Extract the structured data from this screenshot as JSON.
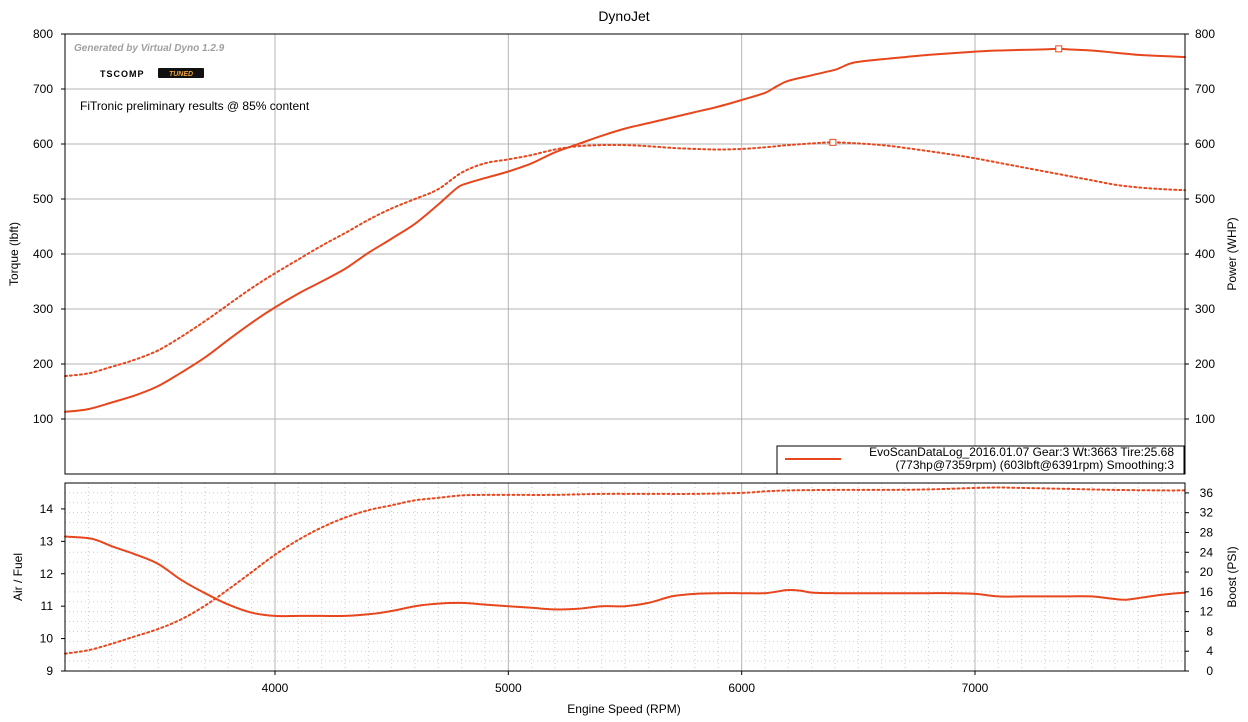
{
  "chart_title": "DynoJet",
  "generator_text": "Generated by Virtual Dyno 1.2.9",
  "logo": {
    "word": "TSCOMP",
    "badge": "TUNED"
  },
  "note": "FiTronic preliminary results @ 85% content",
  "legend": {
    "line1": "EvoScanDataLog_2016.01.07 Gear:3 Wt:3663 Tire:25.68",
    "line2": "(773hp@7359rpm) (603lbft@6391rpm) Smoothing:3"
  },
  "colors": {
    "series": "#e8461c",
    "grid_major": "#b4b4b4",
    "grid_minor": "#cccccc",
    "axis": "#000000"
  },
  "chart_data": [
    {
      "type": "line",
      "title": "DynoJet",
      "xlabel": "",
      "ylabel": "Torque (lbft)",
      "y2label": "Power (WHP)",
      "xlim": [
        3100,
        7900
      ],
      "ylim": [
        0,
        800
      ],
      "y2lim": [
        0,
        800
      ],
      "yticks": [
        100,
        200,
        300,
        400,
        500,
        600,
        700,
        800
      ],
      "y2ticks": [
        100,
        200,
        300,
        400,
        500,
        600,
        700,
        800
      ],
      "grid": true,
      "legend_position": "bottom-right",
      "series": [
        {
          "style": "solid",
          "axis": "right",
          "x": [
            3100,
            3200,
            3300,
            3400,
            3500,
            3600,
            3700,
            3800,
            3900,
            4000,
            4100,
            4200,
            4300,
            4400,
            4500,
            4600,
            4700,
            4780,
            4820,
            4900,
            5000,
            5100,
            5200,
            5300,
            5400,
            5500,
            5600,
            5700,
            5800,
            5900,
            6000,
            6100,
            6150,
            6200,
            6300,
            6400,
            6430,
            6480,
            6600,
            6700,
            6800,
            6900,
            7000,
            7100,
            7200,
            7300,
            7359,
            7400,
            7500,
            7600,
            7700,
            7800,
            7900
          ],
          "y": [
            113,
            118,
            130,
            143,
            160,
            185,
            212,
            244,
            275,
            303,
            328,
            350,
            373,
            402,
            428,
            455,
            490,
            520,
            528,
            538,
            550,
            565,
            585,
            600,
            615,
            628,
            638,
            648,
            658,
            668,
            680,
            693,
            705,
            715,
            725,
            735,
            740,
            748,
            754,
            758,
            762,
            765,
            768,
            770,
            771,
            772,
            773,
            772,
            770,
            766,
            762,
            760,
            758
          ],
          "peak": {
            "x": 7359,
            "y": 773
          }
        },
        {
          "style": "dotted",
          "axis": "left",
          "x": [
            3100,
            3200,
            3300,
            3400,
            3500,
            3600,
            3700,
            3800,
            3900,
            4000,
            4100,
            4200,
            4300,
            4400,
            4500,
            4600,
            4700,
            4800,
            4900,
            5000,
            5100,
            5200,
            5300,
            5400,
            5500,
            5600,
            5700,
            5800,
            5900,
            6000,
            6100,
            6200,
            6300,
            6391,
            6500,
            6600,
            6700,
            6800,
            6900,
            7000,
            7100,
            7200,
            7300,
            7400,
            7500,
            7600,
            7700,
            7800,
            7900
          ],
          "y": [
            178,
            183,
            195,
            208,
            225,
            250,
            278,
            308,
            338,
            365,
            390,
            415,
            438,
            462,
            483,
            500,
            518,
            548,
            565,
            572,
            580,
            590,
            596,
            598,
            598,
            596,
            593,
            591,
            590,
            591,
            594,
            598,
            601,
            603,
            601,
            598,
            593,
            587,
            581,
            574,
            566,
            558,
            550,
            542,
            534,
            526,
            521,
            518,
            516
          ],
          "peak": {
            "x": 6391,
            "y": 603
          }
        }
      ]
    },
    {
      "type": "line",
      "xlabel": "Engine Speed (RPM)",
      "ylabel": "Air / Fuel",
      "y2label": "Boost (PSI)",
      "xlim": [
        3100,
        7900
      ],
      "xticks": [
        4000,
        5000,
        6000,
        7000
      ],
      "ylim": [
        9,
        14.8
      ],
      "y2lim": [
        0,
        38
      ],
      "yticks": [
        9,
        10,
        11,
        12,
        13,
        14
      ],
      "y2ticks": [
        0,
        4,
        8,
        12,
        16,
        20,
        24,
        28,
        32,
        36
      ],
      "grid": true,
      "series": [
        {
          "style": "solid",
          "axis": "left",
          "x": [
            3100,
            3200,
            3250,
            3300,
            3400,
            3500,
            3600,
            3700,
            3800,
            3900,
            4000,
            4100,
            4200,
            4300,
            4400,
            4500,
            4600,
            4700,
            4800,
            4900,
            5000,
            5100,
            5200,
            5300,
            5400,
            5500,
            5600,
            5700,
            5800,
            5900,
            6000,
            6100,
            6150,
            6200,
            6250,
            6300,
            6400,
            6500,
            6600,
            6700,
            6800,
            6900,
            7000,
            7100,
            7200,
            7300,
            7400,
            7500,
            7600,
            7650,
            7700,
            7800,
            7900
          ],
          "y": [
            13.15,
            13.1,
            13.0,
            12.85,
            12.6,
            12.3,
            11.8,
            11.4,
            11.05,
            10.8,
            10.7,
            10.7,
            10.7,
            10.7,
            10.75,
            10.85,
            11.0,
            11.08,
            11.1,
            11.05,
            11.0,
            10.95,
            10.9,
            10.92,
            11.0,
            11.0,
            11.1,
            11.3,
            11.38,
            11.4,
            11.4,
            11.4,
            11.45,
            11.5,
            11.48,
            11.42,
            11.4,
            11.4,
            11.4,
            11.4,
            11.4,
            11.4,
            11.38,
            11.3,
            11.3,
            11.3,
            11.3,
            11.3,
            11.22,
            11.2,
            11.25,
            11.35,
            11.42
          ]
        },
        {
          "style": "dotted",
          "axis": "right",
          "x": [
            3100,
            3200,
            3300,
            3400,
            3500,
            3600,
            3700,
            3800,
            3900,
            4000,
            4100,
            4200,
            4300,
            4400,
            4500,
            4600,
            4700,
            4800,
            4900,
            5000,
            5200,
            5400,
            5600,
            5800,
            6000,
            6100,
            6200,
            6400,
            6600,
            6800,
            7000,
            7100,
            7200,
            7400,
            7600,
            7800,
            7900
          ],
          "y": [
            3.5,
            4.2,
            5.5,
            7,
            8.5,
            10.5,
            13.2,
            16.5,
            20,
            23.5,
            26.5,
            29,
            31,
            32.5,
            33.5,
            34.5,
            35,
            35.5,
            35.6,
            35.6,
            35.6,
            35.8,
            35.8,
            35.8,
            36,
            36.3,
            36.5,
            36.6,
            36.6,
            36.7,
            37,
            37.1,
            37,
            36.8,
            36.6,
            36.5,
            36.5
          ]
        }
      ]
    }
  ]
}
